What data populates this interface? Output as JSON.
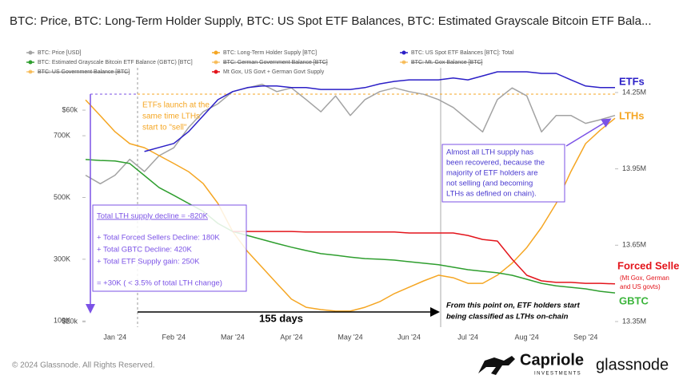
{
  "chart_data": {
    "type": "line",
    "title": "BTC: Price, BTC: Long-Term Holder Supply, BTC: US Spot ETF Balances, BTC: Estimated Grayscale Bitcoin ETF Bala...",
    "categories": [
      null,
      null,
      "Jan '24",
      null,
      null,
      null,
      "Feb '24",
      null,
      null,
      null,
      "Mar '24",
      null,
      null,
      null,
      "Apr '24",
      null,
      null,
      null,
      "May '24",
      null,
      null,
      null,
      "Jun '24",
      null,
      null,
      null,
      "Jul '24",
      null,
      null,
      null,
      "Aug '24",
      null,
      null,
      null,
      "Sep '24",
      null,
      null
    ],
    "series": [
      {
        "name": "BTC: Price [USD]",
        "color": "#a3a3a3",
        "axis": "y3",
        "values": [
          47700,
          46100,
          47700,
          50700,
          48400,
          51400,
          52900,
          56700,
          59700,
          61200,
          63500,
          64200,
          64900,
          63500,
          64200,
          62000,
          59700,
          62700,
          59000,
          62000,
          63500,
          64200,
          63500,
          63000,
          62000,
          60500,
          58200,
          55900,
          62000,
          64200,
          62700,
          55900,
          59000,
          59000,
          57500,
          58200,
          59000
        ]
      },
      {
        "name": "BTC: Long-Term Holder Supply [BTC]",
        "color": "#f5a623",
        "axis": "y2",
        "values": [
          14221000,
          14159000,
          14096000,
          14049000,
          14033000,
          14002000,
          13971000,
          13939000,
          13892000,
          13814000,
          13704000,
          13626000,
          13563000,
          13500000,
          13438000,
          13406000,
          13397000,
          13391000,
          13391000,
          13406000,
          13428000,
          13460000,
          13485000,
          13510000,
          13532000,
          13522000,
          13500000,
          13500000,
          13532000,
          13579000,
          13641000,
          13720000,
          13814000,
          13939000,
          14049000,
          14102000,
          14149000
        ]
      },
      {
        "name": "BTC: US Spot ETF Balances [BTC]: Total",
        "color": "#2b1fc7",
        "axis": "y",
        "values": [
          null,
          null,
          null,
          null,
          649000,
          662000,
          675000,
          713000,
          765000,
          817000,
          843000,
          856000,
          861000,
          861000,
          856000,
          856000,
          850000,
          850000,
          850000,
          856000,
          868000,
          876000,
          881000,
          881000,
          881000,
          887000,
          881000,
          894000,
          907000,
          907000,
          907000,
          902000,
          902000,
          881000,
          861000,
          856000,
          856000
        ]
      },
      {
        "name": "BTC: Estimated Grayscale Bitcoin ETF Balance (GBTC) [BTC]",
        "color": "#2e9e2e",
        "axis": "y",
        "values": [
          623000,
          620000,
          618000,
          610000,
          571000,
          532000,
          507000,
          481000,
          455000,
          416000,
          390000,
          377000,
          364000,
          351000,
          339000,
          328000,
          318000,
          313000,
          307000,
          302000,
          300000,
          297000,
          292000,
          287000,
          282000,
          274000,
          266000,
          261000,
          256000,
          248000,
          235000,
          222000,
          214000,
          209000,
          204000,
          196000,
          191000
        ]
      },
      {
        "name": "Mt Gox, US Govt + German Govt Supply",
        "color": "#e3141b",
        "axis": "y",
        "values": [
          null,
          null,
          null,
          null,
          null,
          null,
          null,
          null,
          null,
          null,
          390000,
          390000,
          390000,
          390000,
          390000,
          388000,
          388000,
          388000,
          388000,
          388000,
          388000,
          388000,
          385000,
          385000,
          385000,
          385000,
          377000,
          364000,
          359000,
          300000,
          248000,
          230000,
          225000,
          225000,
          222000,
          222000,
          220000
        ]
      }
    ],
    "legend_hidden": [
      {
        "name": "BTC: German Government Balance [BTC]",
        "color": "#f5a623"
      },
      {
        "name": "BTC: Mt. Gox Balance [BTC]",
        "color": "#f5a623"
      },
      {
        "name": "BTC: US Government Balance [BTC]",
        "color": "#f5a623"
      }
    ],
    "ylim": [
      80000,
      920000
    ],
    "yticks": [
      {
        "value": 100000,
        "label": "100K"
      },
      {
        "value": 300000,
        "label": "300K"
      },
      {
        "value": 500000,
        "label": "500K"
      },
      {
        "value": 700000,
        "label": "700K"
      }
    ],
    "y2lim": [
      13328000,
      14347000
    ],
    "y2ticks": [
      {
        "value": 13350000,
        "label": "13.35M"
      },
      {
        "value": 13650000,
        "label": "13.65M"
      },
      {
        "value": 13950000,
        "label": "13.95M"
      },
      {
        "value": 14250000,
        "label": "14.25M"
      }
    ],
    "y3lim": [
      19000,
      68000
    ],
    "y3ticks": [
      {
        "value": 20000,
        "label": "$20k"
      },
      {
        "value": 60000,
        "label": "$60k"
      }
    ],
    "annotations": {
      "etfs": "ETFs",
      "lths": "LTHs",
      "forced_sellers": "Forced Sellers",
      "forced_sellers_note": [
        "(Mt Gox, German",
        "and US  govts)"
      ],
      "gbtc": "GBTC",
      "etf_launch": [
        "ETFs launch at the",
        "same time LTHs",
        "start to \"sell\""
      ],
      "recovered": [
        "Almost all LTH supply has",
        "been recovered, because the",
        "majority of ETF holders are",
        "not selling (and becoming",
        "LTHs as defined on chain)."
      ],
      "summary": [
        "Total LTH supply decline = -820K",
        "+ Total Forced Sellers Decline: 180K",
        "+ Total GBTC Decline: 420K",
        "+ Total ETF Supply gain: 250K",
        "= +30K ( < 3.5% of total LTH change)"
      ],
      "days": "155 days",
      "classified": [
        "From this point on, ETF holders start",
        "being classified as LTHs on-chain"
      ]
    }
  },
  "footer": {
    "copyright": "© 2024 Glassnode. All Rights Reserved.",
    "brand": "Capriole",
    "brand_sub": "INVESTMENTS",
    "partner": "glassnode"
  }
}
